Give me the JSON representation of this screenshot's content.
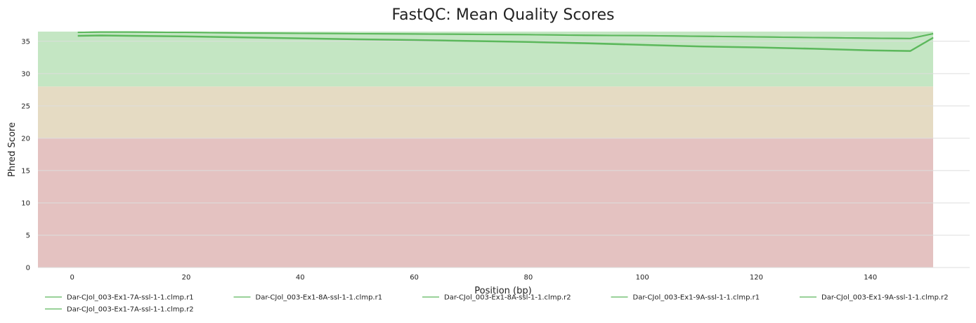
{
  "chart_data": {
    "type": "line",
    "title": "FastQC: Mean Quality Scores",
    "xlabel": "Position (bp)",
    "ylabel": "Phred Score",
    "xlim": [
      -6,
      151
    ],
    "ylim": [
      0,
      36.5
    ],
    "xticks": [
      0,
      20,
      40,
      60,
      80,
      100,
      120,
      140
    ],
    "yticks": [
      0,
      5,
      10,
      15,
      20,
      25,
      30,
      35
    ],
    "grid": true,
    "legend_position": "bottom",
    "bands": [
      {
        "from": 28,
        "to": 36.5,
        "color": "#c4e6c3"
      },
      {
        "from": 20,
        "to": 28,
        "color": "#e5dbc3"
      },
      {
        "from": 0,
        "to": 20,
        "color": "#e4c2c1"
      }
    ],
    "line_color": "#5cb85c",
    "x": [
      1,
      5,
      10,
      20,
      30,
      40,
      50,
      60,
      70,
      80,
      90,
      100,
      110,
      120,
      130,
      140,
      147,
      151
    ],
    "series": [
      {
        "name": "Dar-CJol_003-Ex1-7A-ssl-1-1.clmp.r1",
        "values": [
          36.4,
          36.45,
          36.45,
          36.4,
          36.3,
          36.25,
          36.2,
          36.15,
          36.1,
          36.05,
          35.95,
          35.9,
          35.8,
          35.7,
          35.6,
          35.5,
          35.45,
          36.2
        ]
      },
      {
        "name": "Dar-CJol_003-Ex1-8A-ssl-1-1.clmp.r1",
        "values": [
          36.35,
          36.4,
          36.4,
          36.35,
          36.25,
          36.2,
          36.15,
          36.1,
          36.05,
          36.0,
          35.9,
          35.85,
          35.75,
          35.65,
          35.55,
          35.45,
          35.4,
          36.15
        ]
      },
      {
        "name": "Dar-CJol_003-Ex1-8A-ssl-1-1.clmp.r2",
        "values": [
          35.9,
          35.95,
          35.9,
          35.8,
          35.65,
          35.5,
          35.35,
          35.25,
          35.1,
          34.95,
          34.75,
          34.5,
          34.25,
          34.1,
          33.9,
          33.65,
          33.55,
          35.6
        ]
      },
      {
        "name": "Dar-CJol_003-Ex1-9A-ssl-1-1.clmp.r1",
        "values": [
          36.4,
          36.45,
          36.45,
          36.4,
          36.3,
          36.25,
          36.2,
          36.15,
          36.1,
          36.05,
          35.95,
          35.9,
          35.8,
          35.7,
          35.6,
          35.5,
          35.45,
          36.2
        ]
      },
      {
        "name": "Dar-CJol_003-Ex1-9A-ssl-1-1.clmp.r2",
        "values": [
          35.85,
          35.9,
          35.85,
          35.75,
          35.6,
          35.45,
          35.3,
          35.2,
          35.05,
          34.9,
          34.7,
          34.45,
          34.2,
          34.05,
          33.85,
          33.6,
          33.5,
          35.55
        ]
      },
      {
        "name": "Dar-CJol_003-Ex1-7A-ssl-1-1.clmp.r2",
        "values": [
          35.8,
          35.85,
          35.8,
          35.7,
          35.55,
          35.4,
          35.25,
          35.15,
          35.0,
          34.85,
          34.65,
          34.4,
          34.15,
          34.0,
          33.8,
          33.55,
          33.45,
          35.5
        ]
      }
    ]
  }
}
